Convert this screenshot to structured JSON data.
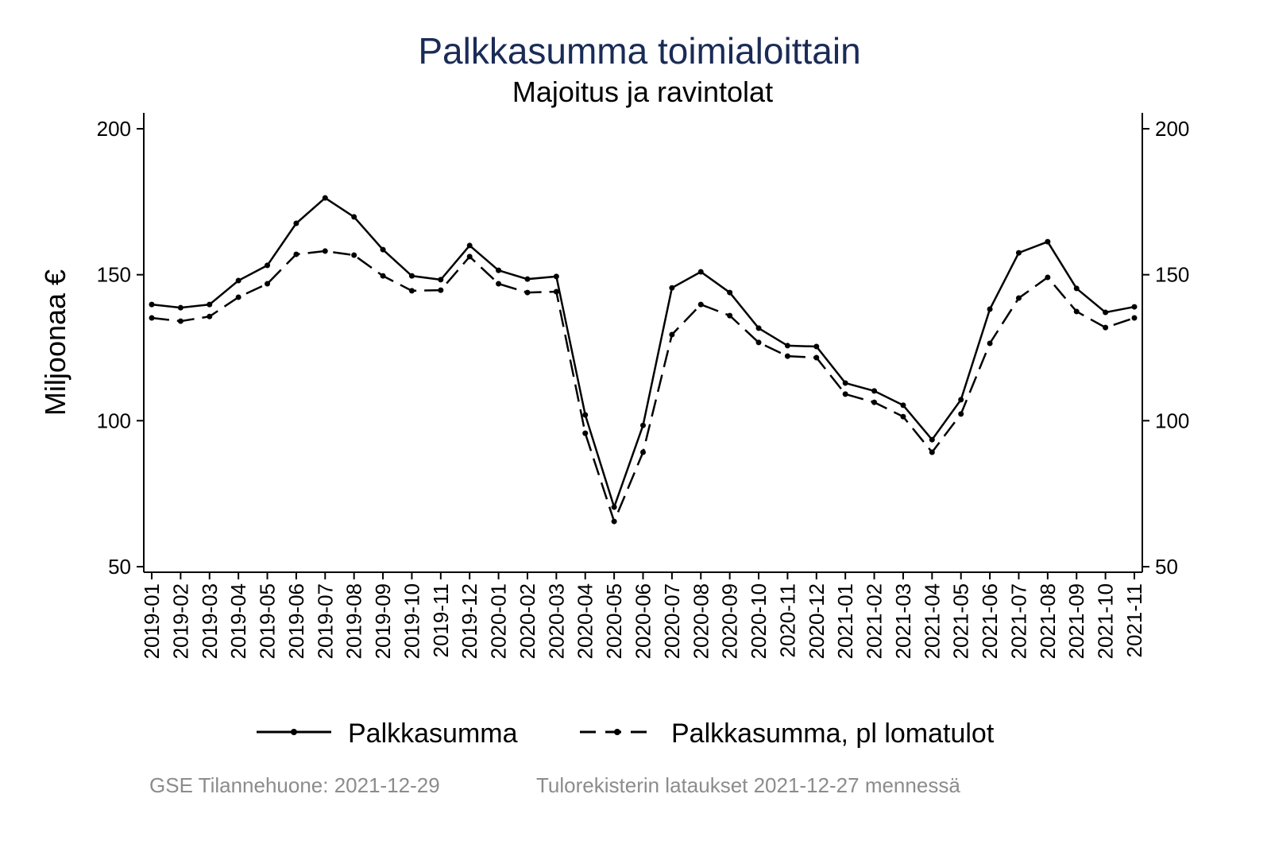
{
  "chart_data": {
    "type": "line",
    "title": "Palkkasumma toimialoittain",
    "subtitle": "Majoitus ja ravintolat",
    "ylabel": "Miljoonaa €",
    "xlabel": "",
    "ylim": [
      50,
      200
    ],
    "yticks": [
      50,
      100,
      150,
      200
    ],
    "grid": false,
    "legend_position": "bottom",
    "categories": [
      "2019-01",
      "2019-02",
      "2019-03",
      "2019-04",
      "2019-05",
      "2019-06",
      "2019-07",
      "2019-08",
      "2019-09",
      "2019-10",
      "2019-11",
      "2019-12",
      "2020-01",
      "2020-02",
      "2020-03",
      "2020-04",
      "2020-05",
      "2020-06",
      "2020-07",
      "2020-08",
      "2020-09",
      "2020-10",
      "2020-11",
      "2020-12",
      "2021-01",
      "2021-02",
      "2021-03",
      "2021-04",
      "2021-05",
      "2021-06",
      "2021-07",
      "2021-08",
      "2021-09",
      "2021-10",
      "2021-11"
    ],
    "series": [
      {
        "name": "Palkkasumma",
        "style": "solid",
        "values": [
          139.8,
          138.7,
          139.8,
          148.0,
          153.2,
          167.6,
          176.3,
          169.8,
          158.6,
          149.6,
          148.3,
          160.0,
          151.5,
          148.5,
          149.4,
          102.0,
          70.4,
          98.4,
          145.5,
          151.0,
          143.9,
          131.7,
          125.7,
          125.4,
          112.9,
          110.2,
          105.3,
          93.5,
          107.2,
          138.2,
          157.5,
          161.3,
          145.3,
          137.1,
          139.0
        ]
      },
      {
        "name": "Palkkasumma, pl lomatulot",
        "style": "dashed",
        "values": [
          135.2,
          134.1,
          135.7,
          142.3,
          146.9,
          157.0,
          158.1,
          156.7,
          149.6,
          144.5,
          144.7,
          156.2,
          146.9,
          143.9,
          144.2,
          95.7,
          65.5,
          89.2,
          129.5,
          139.8,
          136.0,
          126.8,
          122.1,
          121.6,
          109.1,
          106.3,
          101.4,
          89.2,
          102.3,
          126.5,
          142.0,
          149.1,
          137.4,
          131.9,
          135.2
        ]
      }
    ]
  },
  "footer": {
    "left": "GSE Tilannehuone: 2021-12-29",
    "right": "Tulorekisterin lataukset 2021-12-27 mennessä"
  },
  "colors": {
    "title": "#1a2b57",
    "line": "#000000",
    "footer": "#8c8c8c"
  }
}
